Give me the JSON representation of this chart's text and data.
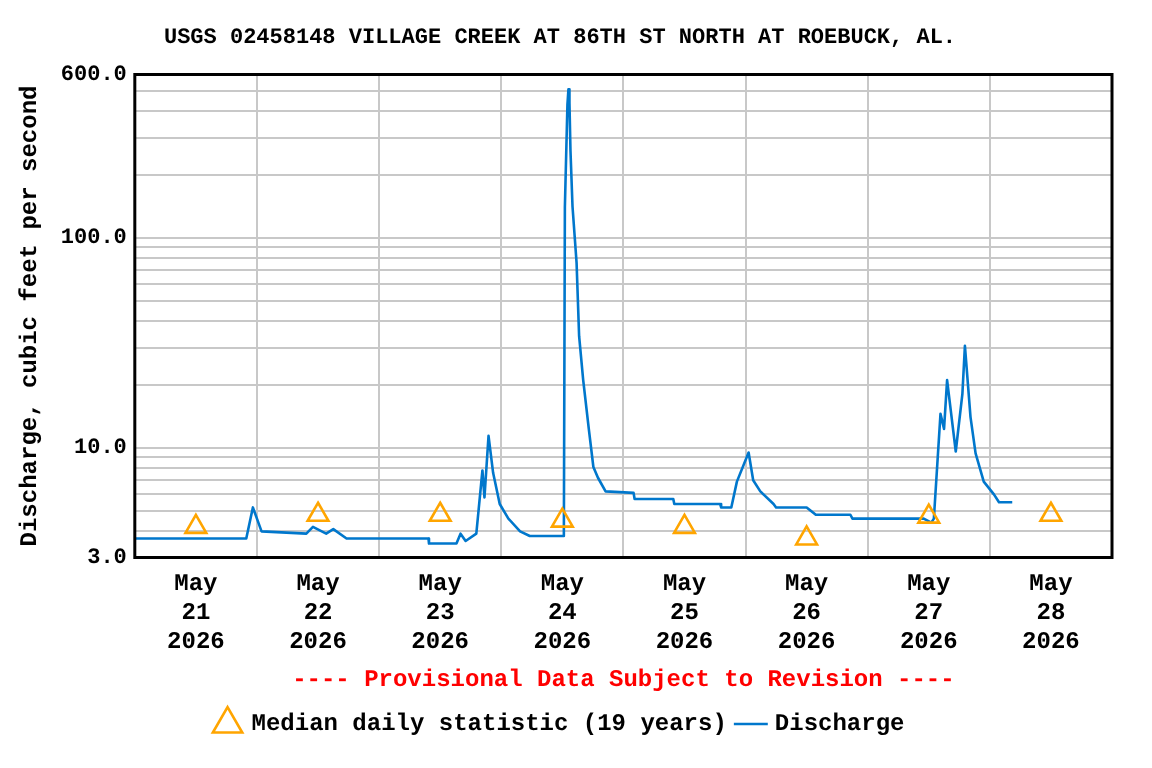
{
  "chart_data": {
    "type": "line",
    "title": "USGS 02458148 VILLAGE CREEK AT 86TH ST NORTH AT ROEBUCK, AL.",
    "ylabel": "Discharge, cubic feet per second",
    "annotations": [
      "---- Provisional Data Subject to Revision ----"
    ],
    "log": "y",
    "grid": true,
    "legend": "bottom",
    "xlim": [
      "2026-05-21T00:00",
      "2026-05-29T00:00"
    ],
    "xticks": [
      {
        "value": "2026-05-21T12:00",
        "label": "May\n21\n2026"
      },
      {
        "value": "2026-05-22T00:00",
        "label": null
      },
      {
        "value": "2026-05-22T12:00",
        "label": "May\n22\n2026"
      },
      {
        "value": "2026-05-23T00:00",
        "label": null
      },
      {
        "value": "2026-05-23T12:00",
        "label": "May\n23\n2026"
      },
      {
        "value": "2026-05-24T00:00",
        "label": null
      },
      {
        "value": "2026-05-24T12:00",
        "label": "May\n24\n2026"
      },
      {
        "value": "2026-05-25T00:00",
        "label": null
      },
      {
        "value": "2026-05-25T12:00",
        "label": "May\n25\n2026"
      },
      {
        "value": "2026-05-26T00:00",
        "label": null
      },
      {
        "value": "2026-05-26T12:00",
        "label": "May\n26\n2026"
      },
      {
        "value": "2026-05-27T00:00",
        "label": null
      },
      {
        "value": "2026-05-27T12:00",
        "label": "May\n27\n2026"
      },
      {
        "value": "2026-05-28T00:00",
        "label": null
      },
      {
        "value": "2026-05-28T12:00",
        "label": "May\n28\n2026"
      }
    ],
    "ylim": [
      3,
      600
    ],
    "yticks": [
      {
        "value": 3,
        "label": "3.0"
      },
      {
        "value": 4,
        "label": null
      },
      {
        "value": 5,
        "label": null
      },
      {
        "value": 6,
        "label": null
      },
      {
        "value": 7,
        "label": null
      },
      {
        "value": 8,
        "label": null
      },
      {
        "value": 9,
        "label": null
      },
      {
        "value": 10,
        "label": "10.0"
      },
      {
        "value": 20,
        "label": null
      },
      {
        "value": 30,
        "label": null
      },
      {
        "value": 40,
        "label": null
      },
      {
        "value": 50,
        "label": null
      },
      {
        "value": 60,
        "label": null
      },
      {
        "value": 70,
        "label": null
      },
      {
        "value": 80,
        "label": null
      },
      {
        "value": 90,
        "label": null
      },
      {
        "value": 100,
        "label": "100.0"
      },
      {
        "value": 200,
        "label": null
      },
      {
        "value": 300,
        "label": null
      },
      {
        "value": 400,
        "label": null
      },
      {
        "value": 500,
        "label": null
      },
      {
        "value": 600,
        "label": "600.0"
      }
    ],
    "series": [
      {
        "name": "Median daily statistic (19 years)",
        "type": "scatter",
        "marker": "triangle",
        "color": "#ffa500",
        "x": [
          "2026-05-21T12:00",
          "2026-05-22T12:00",
          "2026-05-23T12:00",
          "2026-05-24T12:00",
          "2026-05-25T12:00",
          "2026-05-26T12:00",
          "2026-05-27T12:00",
          "2026-05-28T12:00"
        ],
        "values": [
          4.2,
          4.8,
          4.8,
          4.5,
          4.2,
          3.7,
          4.7,
          4.8
        ]
      },
      {
        "name": "Discharge",
        "marker": "none",
        "color": "#0077cc",
        "x": [
          "2026-05-21T00:00",
          "2026-05-21T21:54",
          "2026-05-21T23:12",
          "2026-05-22T00:54",
          "2026-05-22T09:42",
          "2026-05-22T11:00",
          "2026-05-22T13:36",
          "2026-05-22T15:00",
          "2026-05-22T17:36",
          "2026-05-23T09:42",
          "2026-05-23T09:48",
          "2026-05-23T15:12",
          "2026-05-23T16:00",
          "2026-05-23T17:00",
          "2026-05-23T19:06",
          "2026-05-23T20:18",
          "2026-05-23T20:42",
          "2026-05-23T21:30",
          "2026-05-23T22:24",
          "2026-05-23T23:42",
          "2026-05-24T01:24",
          "2026-05-24T03:42",
          "2026-05-24T05:36",
          "2026-05-24T12:18",
          "2026-05-24T12:30",
          "2026-05-24T13:00",
          "2026-05-24T13:12",
          "2026-05-24T13:24",
          "2026-05-24T13:36",
          "2026-05-24T14:00",
          "2026-05-24T14:48",
          "2026-05-24T15:18",
          "2026-05-24T16:06",
          "2026-05-24T17:12",
          "2026-05-24T18:06",
          "2026-05-24T19:00",
          "2026-05-24T20:30",
          "2026-05-25T02:00",
          "2026-05-25T02:12",
          "2026-05-25T09:48",
          "2026-05-25T10:00",
          "2026-05-25T19:00",
          "2026-05-25T19:12",
          "2026-05-25T21:12",
          "2026-05-25T22:18",
          "2026-05-26T00:36",
          "2026-05-26T01:30",
          "2026-05-26T02:54",
          "2026-05-26T05:30",
          "2026-05-26T06:00",
          "2026-05-26T12:00",
          "2026-05-26T13:48",
          "2026-05-26T20:36",
          "2026-05-26T21:00",
          "2026-05-27T11:00",
          "2026-05-27T12:30",
          "2026-05-27T13:00",
          "2026-05-27T14:18",
          "2026-05-27T15:00",
          "2026-05-27T15:36",
          "2026-05-27T17:18",
          "2026-05-27T18:36",
          "2026-05-27T19:06",
          "2026-05-27T20:12",
          "2026-05-27T21:12",
          "2026-05-27T22:48",
          "2026-05-28T00:48",
          "2026-05-28T01:48",
          "2026-05-28T04:24"
        ],
        "values": [
          3.7,
          3.7,
          5.2,
          4.0,
          3.9,
          4.2,
          3.9,
          4.1,
          3.7,
          3.7,
          3.5,
          3.5,
          3.9,
          3.6,
          3.9,
          7.8,
          5.8,
          11.4,
          7.6,
          5.4,
          4.6,
          4.0,
          3.8,
          3.8,
          140,
          430,
          510,
          440,
          260,
          141,
          76,
          34,
          21,
          12.3,
          8.1,
          7.2,
          6.2,
          6.1,
          5.7,
          5.7,
          5.4,
          5.4,
          5.2,
          5.2,
          6.9,
          9.5,
          7.0,
          6.2,
          5.4,
          5.2,
          5.2,
          4.8,
          4.8,
          4.6,
          4.6,
          4.4,
          4.6,
          14.5,
          12.3,
          21,
          9.6,
          18,
          30.6,
          14,
          9.4,
          6.9,
          6.0,
          5.5,
          5.5
        ]
      }
    ]
  }
}
